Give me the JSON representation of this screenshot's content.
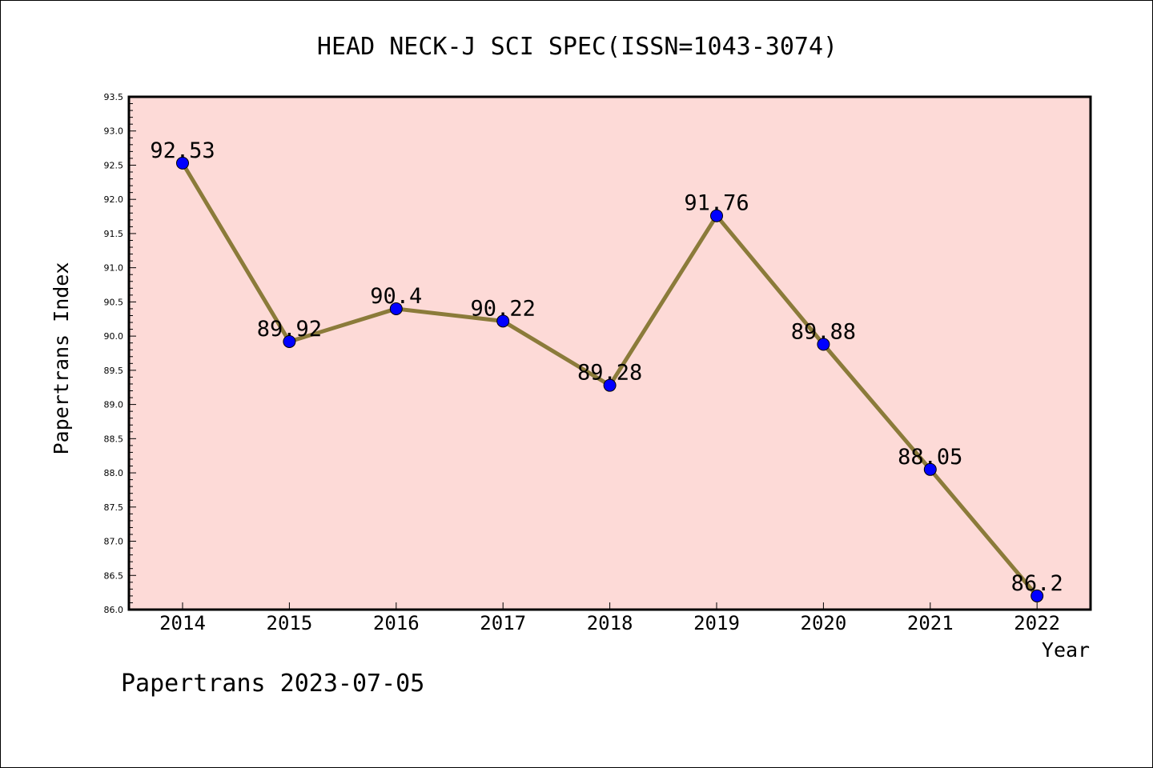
{
  "chart_data": {
    "type": "line",
    "title": "HEAD NECK-J SCI SPEC(ISSN=1043-3074)",
    "xlabel": "Year",
    "ylabel": "Papertrans Index",
    "categories": [
      "2014",
      "2015",
      "2016",
      "2017",
      "2018",
      "2019",
      "2020",
      "2021",
      "2022"
    ],
    "series": [
      {
        "values": [
          92.53,
          89.92,
          90.4,
          90.22,
          89.28,
          91.76,
          89.88,
          88.05,
          86.2
        ],
        "data_labels": [
          "92.53",
          "89.92",
          "90.4",
          "90.22",
          "89.28",
          "91.76",
          "89.88",
          "88.05",
          "86.2"
        ]
      }
    ],
    "ylim": [
      86.0,
      93.5
    ],
    "y_ticks": [
      "86.0",
      "86.5",
      "87.0",
      "87.5",
      "88.0",
      "88.5",
      "89.0",
      "89.5",
      "90.0",
      "90.5",
      "91.0",
      "91.5",
      "92.0",
      "92.5",
      "93.0",
      "93.5"
    ],
    "grid": false,
    "legend": "none",
    "colors": {
      "plot_background": "#FDDAD7",
      "line": "#8B7B3A",
      "marker": "#0000FF"
    }
  },
  "footer": "Papertrans 2023-07-05"
}
